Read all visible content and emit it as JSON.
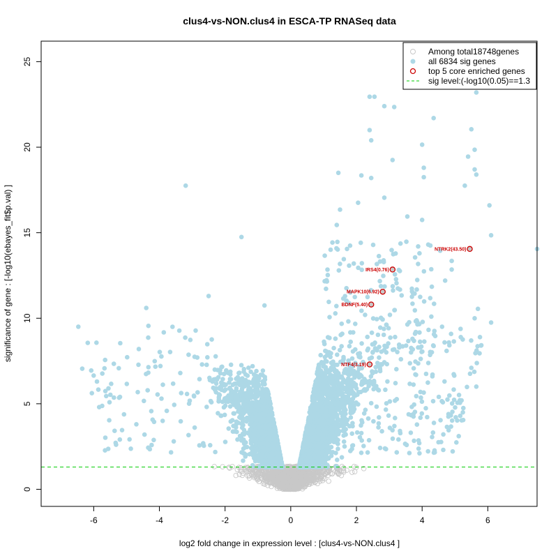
{
  "chart_data": {
    "type": "scatter",
    "title": "clus4-vs-NON.clus4 in ESCA-TP RNASeq data",
    "xlabel": "log2 fold change in expression level : [clus4-vs-NON.clus4 ]",
    "ylabel": "significance of gene : [-log10(ebayes_fit$p.val) ]",
    "xlim": [
      -7.6,
      7.5
    ],
    "ylim": [
      -1.0,
      26.2
    ],
    "x_ticks": [
      -6,
      -4,
      -2,
      0,
      2,
      4,
      6
    ],
    "y_ticks": [
      0,
      5,
      10,
      15,
      20,
      25
    ],
    "x_tick_labels": [
      "-6",
      "-4",
      "-2",
      "0",
      "2",
      "4",
      "6"
    ],
    "y_tick_labels": [
      "0",
      "5",
      "10",
      "15",
      "20",
      "25"
    ],
    "sig_threshold": 1.3,
    "colors": {
      "all": "#c8c8c8",
      "sig": "#add8e6",
      "top": "#cc0000",
      "threshold": "#00cc00",
      "label": "#cc0000"
    },
    "legend": {
      "position": "top-right",
      "entries": [
        "Among total18748genes",
        "all 6834 sig genes",
        "top 5 core enriched genes",
        "sig level:(-log10(0.05)==1.3"
      ]
    },
    "top_genes": [
      {
        "label": "NTRK2(43.50)",
        "x": 5.45,
        "y": 14.05
      },
      {
        "label": "IRS4(0.76)",
        "x": 3.1,
        "y": 12.85
      },
      {
        "label": "MAPK10(6.92)",
        "x": 2.8,
        "y": 11.55
      },
      {
        "label": "BDNF(5.40)",
        "x": 2.45,
        "y": 10.8
      },
      {
        "label": "NTF4(3.19)",
        "x": 2.4,
        "y": 7.3
      }
    ],
    "notable_sig_points": [
      [
        -3.2,
        17.75
      ],
      [
        -1.5,
        14.75
      ],
      [
        -4.4,
        10.6
      ],
      [
        -2.5,
        11.3
      ],
      [
        -0.8,
        10.75
      ],
      [
        -6.35,
        7.05
      ],
      [
        -6.0,
        6.65
      ],
      [
        -5.9,
        6.3
      ],
      [
        -5.55,
        5.9
      ],
      [
        -5.2,
        5.4
      ],
      [
        -4.7,
        3.8
      ],
      [
        -3.9,
        4.0
      ],
      [
        -2.7,
        7.3
      ],
      [
        -3.6,
        9.5
      ],
      [
        2.4,
        22.95
      ],
      [
        2.55,
        22.95
      ],
      [
        2.85,
        22.4
      ],
      [
        3.15,
        22.35
      ],
      [
        2.4,
        21.0
      ],
      [
        2.45,
        20.4
      ],
      [
        4.35,
        21.7
      ],
      [
        4.0,
        20.15
      ],
      [
        3.1,
        19.25
      ],
      [
        4.05,
        18.8
      ],
      [
        4.05,
        18.25
      ],
      [
        2.15,
        18.35
      ],
      [
        2.45,
        18.2
      ],
      [
        1.45,
        18.5
      ],
      [
        2.85,
        17.05
      ],
      [
        2.05,
        16.75
      ],
      [
        1.5,
        16.35
      ],
      [
        3.55,
        15.95
      ],
      [
        4.0,
        15.75
      ],
      [
        1.4,
        15.45
      ],
      [
        5.65,
        23.2
      ],
      [
        5.5,
        21.05
      ],
      [
        5.6,
        19.85
      ],
      [
        5.4,
        19.45
      ],
      [
        5.6,
        18.7
      ],
      [
        5.65,
        18.4
      ],
      [
        5.3,
        17.75
      ],
      [
        6.05,
        16.6
      ],
      [
        6.1,
        14.85
      ],
      [
        7.5,
        14.05
      ],
      [
        4.25,
        14.25
      ],
      [
        4.55,
        13.95
      ],
      [
        4.9,
        13.35
      ],
      [
        4.9,
        12.85
      ],
      [
        4.7,
        12.2
      ],
      [
        5.6,
        10.0
      ],
      [
        6.1,
        9.75
      ],
      [
        5.7,
        10.55
      ],
      [
        5.5,
        7.1
      ],
      [
        5.65,
        6.0
      ],
      [
        5.25,
        4.05
      ],
      [
        4.8,
        4.25
      ],
      [
        4.6,
        5.15
      ],
      [
        5.2,
        5.2
      ],
      [
        4.5,
        2.75
      ]
    ],
    "cloud_model": {
      "sig_points": 6834,
      "total_points": 18748,
      "ncp_scale_pos": 4.7,
      "ncp_scale_neg": 4.3
    }
  }
}
